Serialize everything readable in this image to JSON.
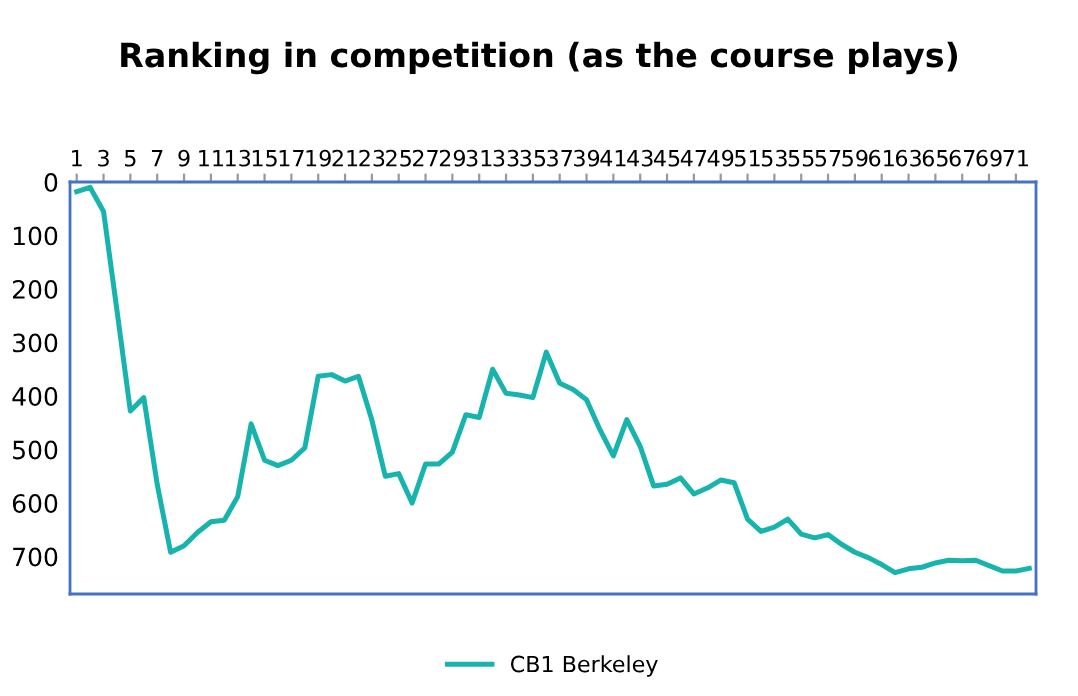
{
  "chart_data": {
    "type": "line",
    "title": "Ranking in competition (as the course plays)",
    "categories": [
      "1",
      null,
      "3",
      null,
      "5",
      null,
      "7",
      null,
      "9",
      null,
      "11",
      null,
      "13",
      null,
      "15",
      null,
      "17",
      null,
      "19",
      null,
      "21",
      null,
      "23",
      null,
      "25",
      null,
      "27",
      null,
      "29",
      null,
      "31",
      null,
      "33",
      null,
      "35",
      null,
      "37",
      null,
      "39",
      null,
      "41",
      null,
      "43",
      null,
      "45",
      null,
      "47",
      null,
      "49",
      null,
      "51",
      null,
      "53",
      null,
      "55",
      null,
      "57",
      null,
      "59",
      null,
      "61",
      null,
      "63",
      null,
      "65",
      null,
      "67",
      null,
      "69",
      null,
      "71",
      null
    ],
    "series": [
      {
        "name": "CB1 Berkeley",
        "color": "#17b3ad",
        "values": [
          18,
          10,
          55,
          240,
          428,
          403,
          565,
          692,
          680,
          655,
          635,
          632,
          588,
          452,
          520,
          530,
          520,
          497,
          363,
          360,
          372,
          363,
          445,
          550,
          545,
          600,
          527,
          527,
          505,
          435,
          440,
          350,
          395,
          398,
          403,
          318,
          376,
          388,
          407,
          463,
          512,
          444,
          494,
          568,
          565,
          553,
          583,
          572,
          557,
          562,
          630,
          653,
          645,
          630,
          658,
          665,
          659,
          677,
          692,
          702,
          715,
          730,
          723,
          720,
          712,
          707,
          708,
          707,
          717,
          727,
          727,
          722
        ]
      }
    ],
    "ylim": [
      770,
      0
    ],
    "yticks": [
      0,
      100,
      200,
      300,
      400,
      500,
      600,
      700
    ],
    "grid": false,
    "legend": "bottom",
    "marker": "none",
    "line_style": "solid"
  }
}
